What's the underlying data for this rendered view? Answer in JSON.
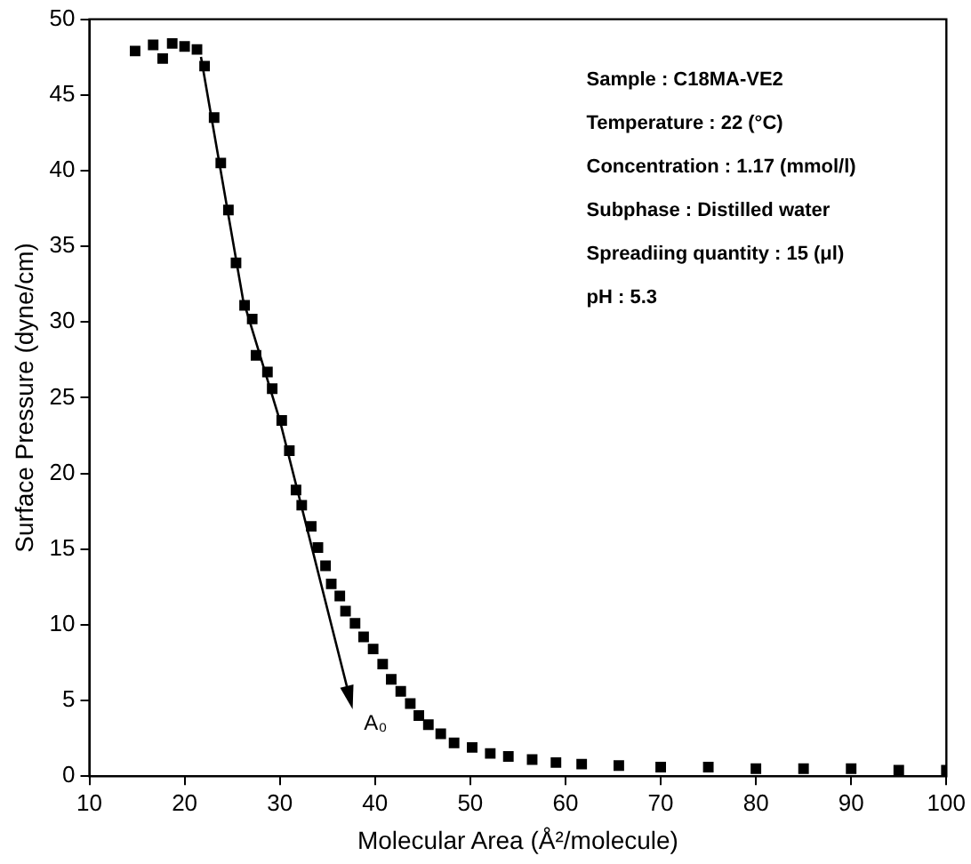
{
  "chart_data": {
    "type": "scatter",
    "xlabel": "Molecular Area (Å²/molecule)",
    "ylabel": "Surface Pressure (dyne/cm)",
    "xlim": [
      10,
      100
    ],
    "xticks": [
      10,
      20,
      30,
      40,
      50,
      60,
      70,
      80,
      90,
      100
    ],
    "ylim": [
      0,
      50
    ],
    "yticks": [
      0,
      5,
      10,
      15,
      20,
      25,
      30,
      35,
      40,
      45,
      50
    ],
    "grid": false,
    "legend": false,
    "marker": "square",
    "series": [
      {
        "color": "#000000",
        "x": [
          14.8,
          16.7,
          17.7,
          18.7,
          20,
          21.3,
          22.1,
          23.1,
          23.8,
          24.6,
          25.4,
          26.3,
          27.1,
          27.5,
          28.7,
          29.2,
          30.2,
          31.0,
          31.7,
          32.3,
          33.3,
          34.0,
          34.8,
          35.4,
          36.3,
          36.9,
          37.9,
          38.8,
          39.8,
          40.8,
          41.7,
          42.7,
          43.7,
          44.6,
          45.6,
          46.9,
          48.3,
          50.2,
          52.1,
          54,
          56.5,
          59,
          61.7,
          65.6,
          70,
          75,
          80,
          85,
          90,
          95,
          100
        ],
        "values": [
          47.9,
          48.3,
          47.4,
          48.4,
          48.2,
          48.0,
          46.9,
          43.5,
          40.5,
          37.4,
          33.9,
          31.1,
          30.2,
          27.8,
          26.7,
          25.6,
          23.5,
          21.5,
          18.9,
          17.9,
          16.5,
          15.1,
          13.9,
          12.7,
          11.9,
          10.9,
          10.1,
          9.2,
          8.4,
          7.4,
          6.4,
          5.6,
          4.8,
          4.0,
          3.4,
          2.8,
          2.2,
          1.9,
          1.5,
          1.3,
          1.1,
          0.9,
          0.8,
          0.7,
          0.6,
          0.6,
          0.5,
          0.5,
          0.5,
          0.4,
          0.4
        ]
      }
    ],
    "annotations": [
      "Sample : C18MA-VE2",
      "Temperature : 22 (°C)",
      "Concentration : 1.17 (mmol/l)",
      "Subphase : Distilled water",
      "Spreadiing quantity : 15 (μl)",
      "pH : 5.3",
      "A₀"
    ]
  }
}
